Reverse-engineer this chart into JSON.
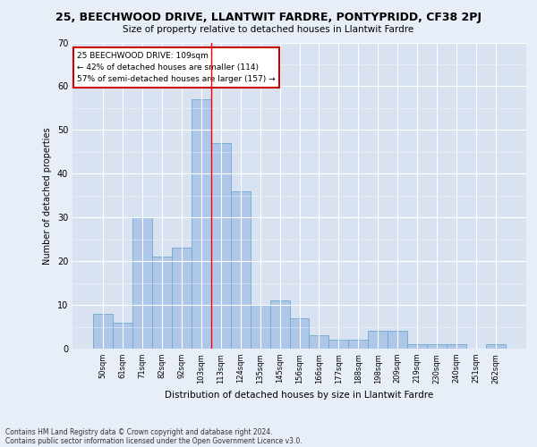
{
  "title": "25, BEECHWOOD DRIVE, LLANTWIT FARDRE, PONTYPRIDD, CF38 2PJ",
  "subtitle": "Size of property relative to detached houses in Llantwit Fardre",
  "xlabel": "Distribution of detached houses by size in Llantwit Fardre",
  "ylabel": "Number of detached properties",
  "categories": [
    "50sqm",
    "61sqm",
    "71sqm",
    "82sqm",
    "92sqm",
    "103sqm",
    "113sqm",
    "124sqm",
    "135sqm",
    "145sqm",
    "156sqm",
    "166sqm",
    "177sqm",
    "188sqm",
    "198sqm",
    "209sqm",
    "219sqm",
    "230sqm",
    "240sqm",
    "251sqm",
    "262sqm"
  ],
  "values": [
    8,
    6,
    30,
    21,
    23,
    57,
    47,
    36,
    10,
    11,
    7,
    3,
    2,
    2,
    4,
    4,
    1,
    1,
    1,
    0,
    1
  ],
  "bar_color": "#aec6e8",
  "bar_edge_color": "#6fa8d0",
  "annotation_line1": "25 BEECHWOOD DRIVE: 109sqm",
  "annotation_line2": "← 42% of detached houses are smaller (114)",
  "annotation_line3": "57% of semi-detached houses are larger (157) →",
  "annotation_box_facecolor": "#ffffff",
  "annotation_box_edgecolor": "#cc0000",
  "footnote1": "Contains HM Land Registry data © Crown copyright and database right 2024.",
  "footnote2": "Contains public sector information licensed under the Open Government Licence v3.0.",
  "ylim": [
    0,
    70
  ],
  "yticks": [
    0,
    10,
    20,
    30,
    40,
    50,
    60,
    70
  ],
  "background_color": "#e8eef7",
  "plot_background_color": "#d8e2f0",
  "red_line_x": 5.5
}
